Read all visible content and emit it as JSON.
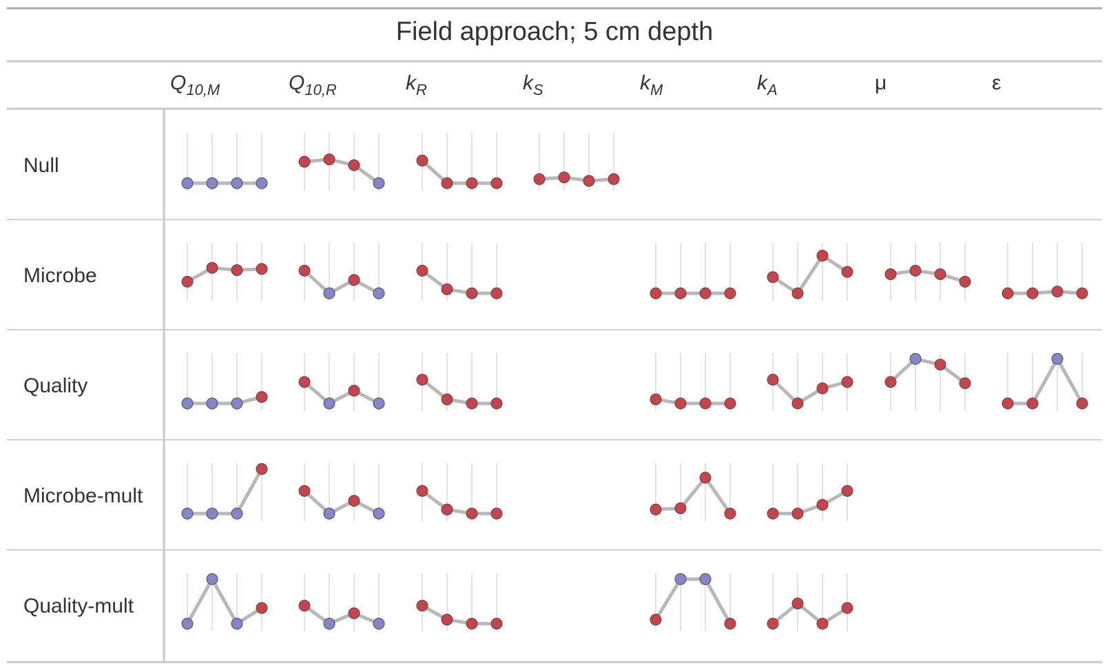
{
  "title": "Field approach; 5 cm depth",
  "columns": [
    {
      "base": "Q",
      "sub": "10,M"
    },
    {
      "base": "Q",
      "sub": "10,R"
    },
    {
      "base": "k",
      "sub": "R"
    },
    {
      "base": "k",
      "sub": "S"
    },
    {
      "base": "k",
      "sub": "M"
    },
    {
      "base": "k",
      "sub": "A"
    },
    {
      "base": "μ",
      "sub": ""
    },
    {
      "base": "ε",
      "sub": ""
    }
  ],
  "rows": [
    "Null",
    "Microbe",
    "Quality",
    "Microbe-mult",
    "Quality-mult"
  ],
  "colors": {
    "high": "#C9434B",
    "low": "#8585CC",
    "line": "#B8B8B8",
    "rule": "#C8C8C8"
  },
  "chart_data": {
    "type": "table",
    "title": "Field approach; 5 cm depth",
    "x_points": 4,
    "value_range": [
      0,
      1
    ],
    "cells": [
      [
        {
          "values": [
            0.13,
            0.13,
            0.13,
            0.13
          ],
          "colors": [
            "low",
            "low",
            "low",
            "low"
          ]
        },
        {
          "values": [
            0.5,
            0.54,
            0.44,
            0.13
          ],
          "colors": [
            "high",
            "high",
            "high",
            "low"
          ]
        },
        {
          "values": [
            0.52,
            0.13,
            0.13,
            0.13
          ],
          "colors": [
            "high",
            "high",
            "high",
            "high"
          ]
        },
        {
          "values": [
            0.2,
            0.23,
            0.17,
            0.2
          ],
          "colors": [
            "high",
            "high",
            "high",
            "high"
          ]
        },
        null,
        null,
        null,
        null
      ],
      [
        {
          "values": [
            0.33,
            0.57,
            0.53,
            0.55
          ],
          "colors": [
            "high",
            "high",
            "high",
            "high"
          ]
        },
        {
          "values": [
            0.52,
            0.13,
            0.36,
            0.13
          ],
          "colors": [
            "high",
            "low",
            "high",
            "low"
          ]
        },
        {
          "values": [
            0.52,
            0.2,
            0.13,
            0.13
          ],
          "colors": [
            "high",
            "high",
            "high",
            "high"
          ]
        },
        null,
        {
          "values": [
            0.13,
            0.13,
            0.13,
            0.13
          ],
          "colors": [
            "high",
            "high",
            "high",
            "high"
          ]
        },
        {
          "values": [
            0.41,
            0.13,
            0.78,
            0.5
          ],
          "colors": [
            "high",
            "high",
            "high",
            "high"
          ]
        },
        {
          "values": [
            0.46,
            0.52,
            0.46,
            0.33
          ],
          "colors": [
            "high",
            "high",
            "high",
            "high"
          ]
        },
        {
          "values": [
            0.13,
            0.13,
            0.16,
            0.13
          ],
          "colors": [
            "high",
            "high",
            "high",
            "high"
          ]
        }
      ],
      [
        {
          "values": [
            0.13,
            0.13,
            0.13,
            0.24
          ],
          "colors": [
            "low",
            "low",
            "low",
            "high"
          ]
        },
        {
          "values": [
            0.5,
            0.13,
            0.35,
            0.13
          ],
          "colors": [
            "high",
            "low",
            "high",
            "low"
          ]
        },
        {
          "values": [
            0.54,
            0.2,
            0.13,
            0.13
          ],
          "colors": [
            "high",
            "high",
            "high",
            "high"
          ]
        },
        null,
        {
          "values": [
            0.2,
            0.13,
            0.13,
            0.13
          ],
          "colors": [
            "high",
            "high",
            "high",
            "high"
          ]
        },
        {
          "values": [
            0.54,
            0.13,
            0.39,
            0.5
          ],
          "colors": [
            "high",
            "high",
            "high",
            "high"
          ]
        },
        {
          "values": [
            0.5,
            0.9,
            0.8,
            0.48
          ],
          "colors": [
            "high",
            "low",
            "high",
            "high"
          ]
        },
        {
          "values": [
            0.13,
            0.13,
            0.9,
            0.13
          ],
          "colors": [
            "high",
            "high",
            "low",
            "high"
          ]
        }
      ],
      [
        {
          "values": [
            0.13,
            0.13,
            0.13,
            0.9
          ],
          "colors": [
            "low",
            "low",
            "low",
            "high"
          ]
        },
        {
          "values": [
            0.52,
            0.13,
            0.35,
            0.13
          ],
          "colors": [
            "high",
            "low",
            "high",
            "low"
          ]
        },
        {
          "values": [
            0.52,
            0.2,
            0.13,
            0.13
          ],
          "colors": [
            "high",
            "high",
            "high",
            "high"
          ]
        },
        null,
        {
          "values": [
            0.2,
            0.22,
            0.75,
            0.13
          ],
          "colors": [
            "high",
            "high",
            "high",
            "high"
          ]
        },
        {
          "values": [
            0.13,
            0.13,
            0.28,
            0.52
          ],
          "colors": [
            "high",
            "high",
            "high",
            "high"
          ]
        },
        null,
        null
      ],
      [
        {
          "values": [
            0.13,
            0.9,
            0.13,
            0.4
          ],
          "colors": [
            "low",
            "low",
            "low",
            "high"
          ]
        },
        {
          "values": [
            0.44,
            0.13,
            0.31,
            0.13
          ],
          "colors": [
            "high",
            "low",
            "high",
            "low"
          ]
        },
        {
          "values": [
            0.44,
            0.2,
            0.13,
            0.13
          ],
          "colors": [
            "high",
            "high",
            "high",
            "high"
          ]
        },
        null,
        {
          "values": [
            0.2,
            0.9,
            0.9,
            0.13
          ],
          "colors": [
            "high",
            "low",
            "low",
            "high"
          ]
        },
        {
          "values": [
            0.13,
            0.48,
            0.13,
            0.4
          ],
          "colors": [
            "high",
            "high",
            "high",
            "high"
          ]
        },
        null,
        null
      ]
    ]
  }
}
